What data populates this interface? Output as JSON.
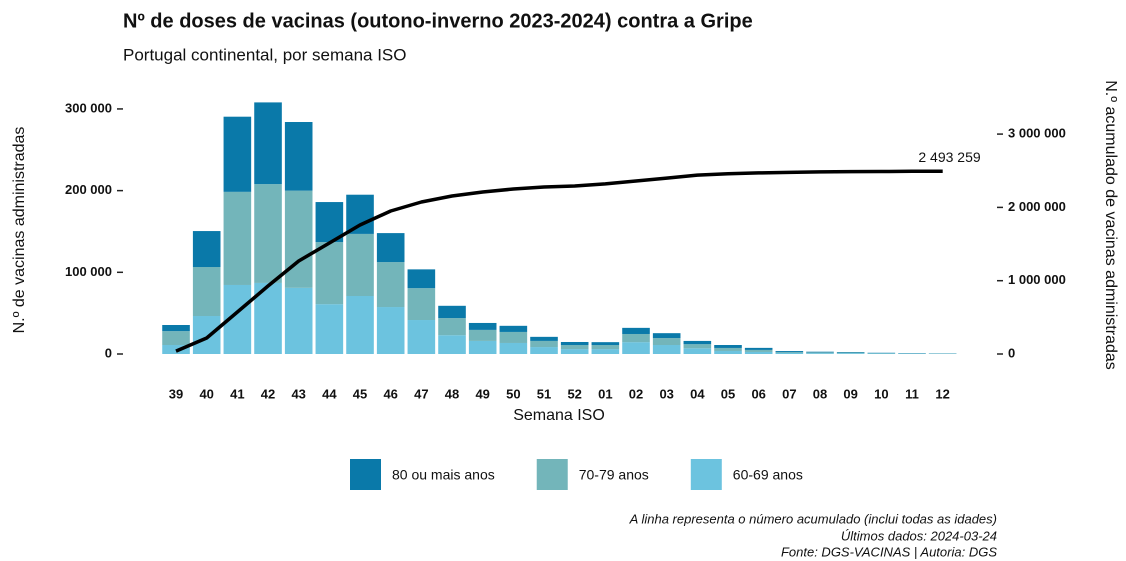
{
  "chart_data": {
    "type": "bar",
    "title": "Nº de doses de vacinas (outono-inverno 2023-2024) contra a Gripe",
    "subtitle": "Portugal continental, por semana ISO",
    "x_label": "Semana ISO",
    "y_label": "N.º de vacinas administradas",
    "y2_label": "N.º acumulado de vacinas administradas",
    "stacked": true,
    "categories": [
      "39",
      "40",
      "41",
      "42",
      "43",
      "44",
      "45",
      "46",
      "47",
      "48",
      "49",
      "50",
      "51",
      "52",
      "01",
      "02",
      "03",
      "04",
      "05",
      "06",
      "07",
      "08",
      "09",
      "10",
      "11",
      "12"
    ],
    "series": [
      {
        "name": "80 ou mais anos",
        "color": "#0a79a9",
        "values": [
          7500,
          44000,
          92000,
          100000,
          84000,
          49000,
          48000,
          35500,
          23000,
          15000,
          8500,
          7500,
          5000,
          3700,
          3500,
          7500,
          6000,
          4000,
          3600,
          2500,
          1200,
          800,
          600,
          400,
          300,
          200
        ]
      },
      {
        "name": "70-79 anos",
        "color": "#73b5ba",
        "values": [
          17000,
          60000,
          114000,
          121000,
          119000,
          76000,
          76000,
          55000,
          39000,
          21000,
          13500,
          13500,
          7500,
          5000,
          5000,
          10000,
          8500,
          5000,
          3700,
          2500,
          1200,
          1000,
          800,
          500,
          400,
          300
        ]
      },
      {
        "name": "60-69 anos",
        "color": "#6cc3df",
        "values": [
          11000,
          46500,
          84500,
          87000,
          81000,
          61000,
          71000,
          57500,
          41600,
          23000,
          16000,
          13500,
          8500,
          6000,
          6000,
          14500,
          11000,
          7000,
          3700,
          2500,
          1200,
          1000,
          1000,
          600,
          500,
          400
        ]
      }
    ],
    "line": {
      "axis": "y2",
      "color": "#000000",
      "values": [
        40000,
        218000,
        573000,
        928000,
        1269000,
        1514000,
        1760000,
        1951000,
        2074000,
        2155000,
        2210000,
        2251000,
        2278000,
        2292000,
        2320000,
        2360000,
        2400000,
        2440000,
        2460000,
        2470000,
        2478000,
        2484000,
        2488000,
        2490000,
        2492000,
        2493259
      ],
      "value_labels": [
        null,
        null,
        null,
        null,
        null,
        null,
        null,
        null,
        null,
        null,
        null,
        null,
        null,
        null,
        null,
        null,
        null,
        null,
        null,
        null,
        null,
        null,
        null,
        null,
        null,
        "2 493 259"
      ]
    },
    "ylim": [
      0,
      320000
    ],
    "yticks": [
      {
        "value": 0,
        "label": "0"
      },
      {
        "value": 100000,
        "label": "100 000"
      },
      {
        "value": 200000,
        "label": "200 000"
      },
      {
        "value": 300000,
        "label": "300 000"
      }
    ],
    "y2lim": [
      0,
      3566000
    ],
    "y2ticks": [
      {
        "value": 0,
        "label": "0"
      },
      {
        "value": 1000000,
        "label": "1 000 000"
      },
      {
        "value": 2000000,
        "label": "2 000 000"
      },
      {
        "value": 3000000,
        "label": "3 000 000"
      }
    ],
    "grid": false,
    "legend": "bottom",
    "notes": [
      "A linha representa o número acumulado (inclui todas as idades)",
      "Últimos dados: 2024-03-24",
      "Fonte: DGS-VACINAS | Autoria: DGS"
    ]
  }
}
